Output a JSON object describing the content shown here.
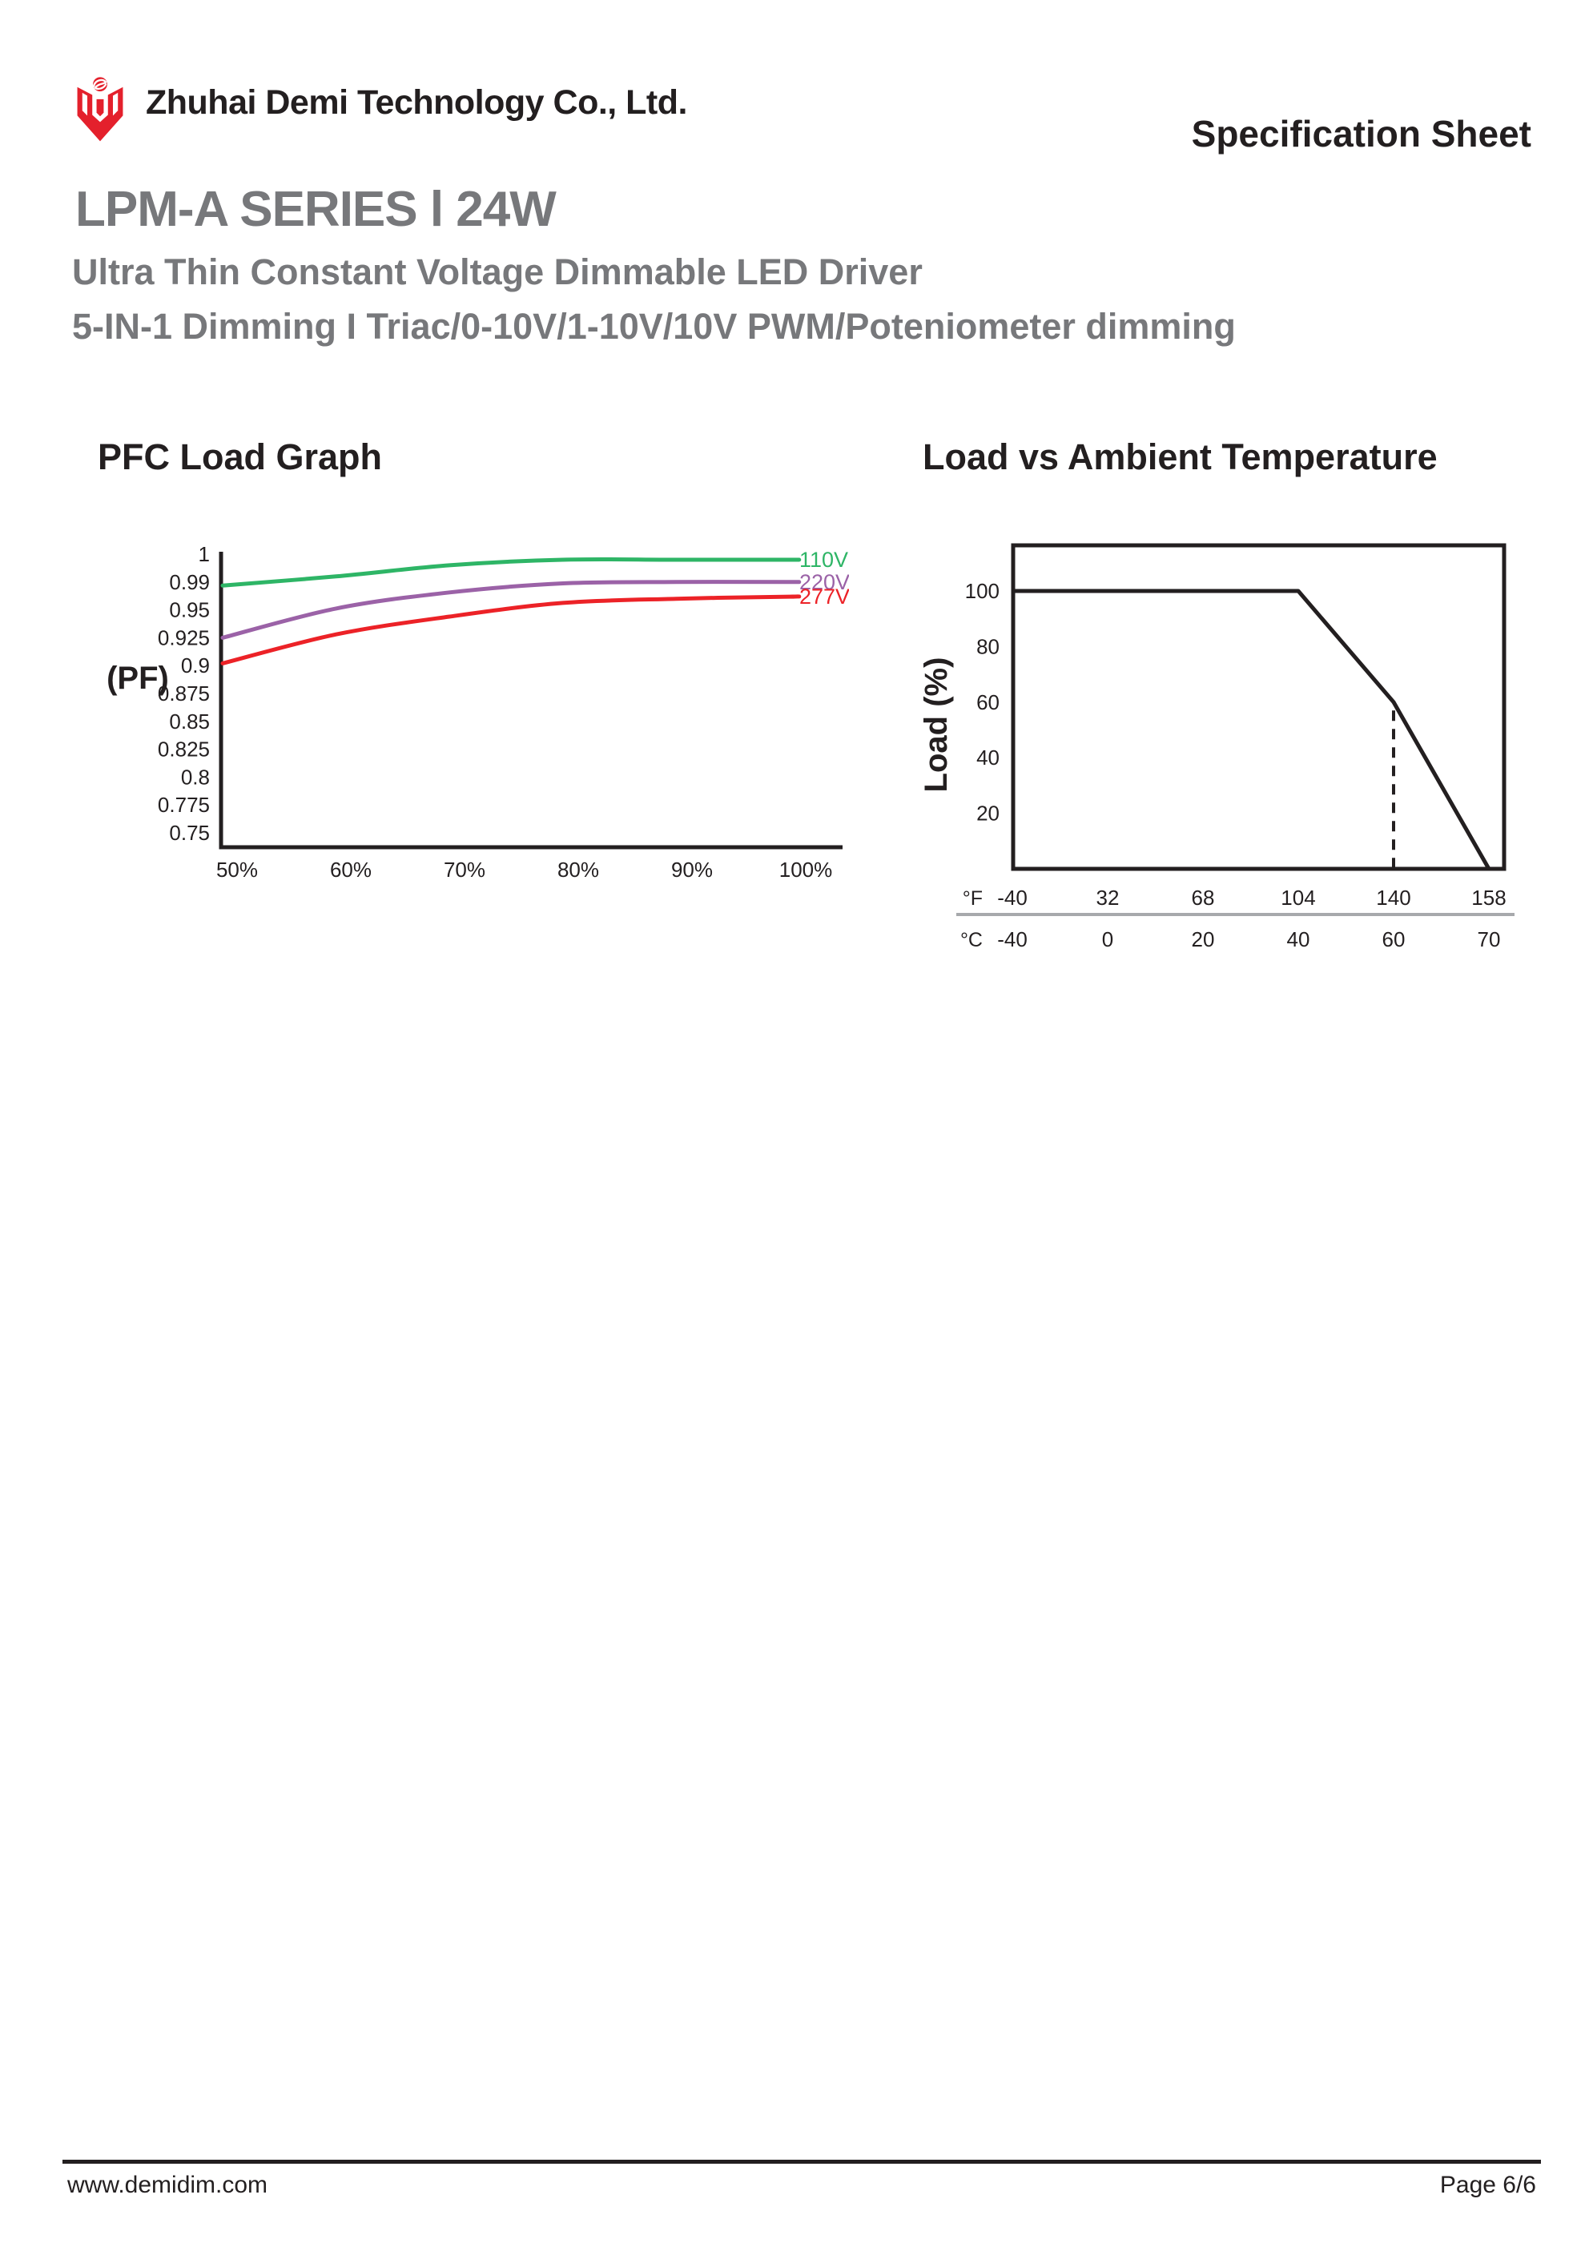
{
  "header": {
    "company_name": "Zhuhai Demi Technology Co., Ltd.",
    "sheet_label": "Specification Sheet",
    "logo_color": "#E4202C"
  },
  "title_block": {
    "product_title": "LPM-A SERIES l 24W",
    "subtitle_line1": "Ultra Thin Constant Voltage Dimmable LED Driver",
    "subtitle_line2": "5-IN-1 Dimming I  Triac/0-10V/1-10V/10V PWM/Poteniometer dimming",
    "text_color": "#77787B"
  },
  "sections": {
    "left_chart_title": "PFC Load Graph",
    "right_chart_title": "Load vs Ambient Temperature"
  },
  "footer": {
    "website": "www.demidim.com",
    "page_label": "Page 6/6"
  },
  "colors": {
    "text": "#231F20",
    "divider_gray": "#A7A9AC"
  },
  "chart_data": [
    {
      "id": "pfc_load_graph",
      "type": "line",
      "title": "PFC Load Graph",
      "ylabel": "(PF)",
      "x_tick_labels": [
        "50%",
        "60%",
        "70%",
        "80%",
        "90%",
        "100%"
      ],
      "x_values": [
        50,
        60,
        70,
        80,
        90,
        100
      ],
      "y_tick_labels": [
        "1",
        "0.99",
        "0.95",
        "0.925",
        "0.9",
        "0.875",
        "0.85",
        "0.825",
        "0.8",
        "0.775",
        "0.75"
      ],
      "y_tick_values": [
        1,
        0.99,
        0.95,
        0.925,
        0.9,
        0.875,
        0.85,
        0.825,
        0.8,
        0.775,
        0.75
      ],
      "y_axis_note": "tick labels evenly spaced (non-linear value scale)",
      "grid": false,
      "legend_position": "right end of lines",
      "series": [
        {
          "name": "110V",
          "color": "#2EB566",
          "values": [
            0.985,
            0.992,
            0.996,
            0.998,
            0.998,
            0.998
          ]
        },
        {
          "name": "220V",
          "color": "#9B62A7",
          "values": [
            0.925,
            0.952,
            0.975,
            0.988,
            0.99,
            0.99
          ]
        },
        {
          "name": "277V",
          "color": "#EC2227",
          "values": [
            0.902,
            0.928,
            0.944,
            0.96,
            0.966,
            0.969
          ]
        }
      ]
    },
    {
      "id": "load_vs_ambient_temperature",
      "type": "line",
      "title": "Load vs Ambient Temperature",
      "ylabel": "Load (%)",
      "y_ticks": [
        100,
        80,
        60,
        40,
        20
      ],
      "ylim": [
        0,
        115
      ],
      "x_tick_rows": [
        {
          "unit": "°F",
          "labels": [
            "-40",
            "32",
            "68",
            "104",
            "140",
            "158"
          ]
        },
        {
          "unit": "°C",
          "labels": [
            "-40",
            "0",
            "20",
            "40",
            "60",
            "70"
          ]
        }
      ],
      "x_tick_values_c": [
        -40,
        0,
        20,
        40,
        60,
        70
      ],
      "line_color": "#231F20",
      "grid": false,
      "border": "full box",
      "series": [
        {
          "name": "load_derating",
          "points_c": [
            [
              -40,
              100
            ],
            [
              40,
              100
            ],
            [
              60,
              60
            ],
            [
              70,
              0
            ]
          ]
        }
      ],
      "annotations": [
        {
          "type": "dashed_vertical_line",
          "x_c": 60,
          "y_from": 57,
          "y_to": 0
        }
      ]
    }
  ]
}
